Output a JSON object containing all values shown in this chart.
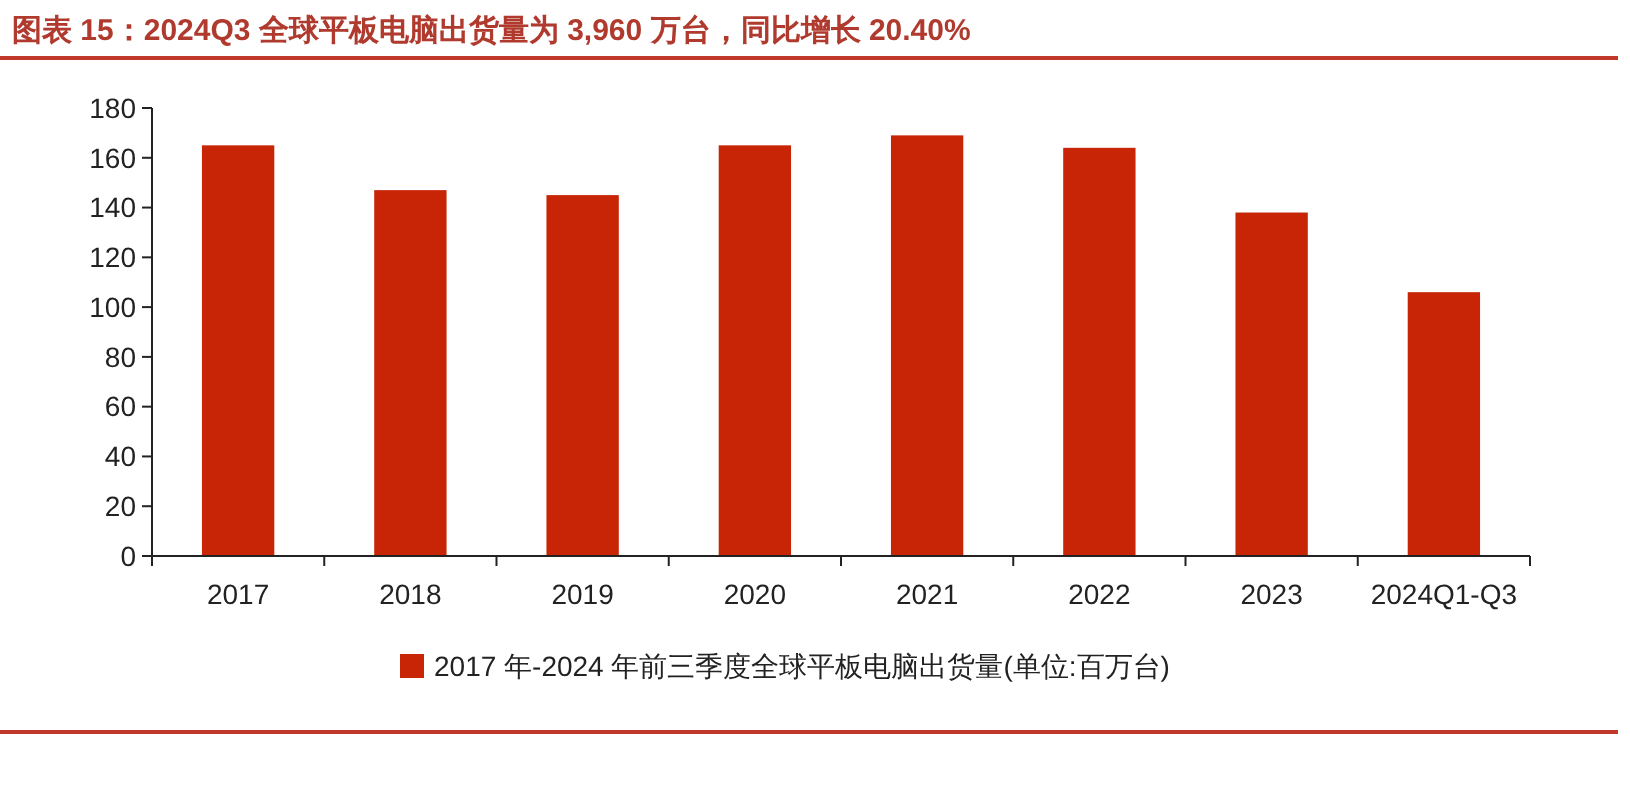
{
  "chart_data": {
    "type": "bar",
    "title": "图表 15：2024Q3 全球平板电脑出货量为 3,960 万台，同比增长 20.40%",
    "categories": [
      "2017",
      "2018",
      "2019",
      "2020",
      "2021",
      "2022",
      "2023",
      "2024Q1-Q3"
    ],
    "series": [
      {
        "name": "2017 年-2024 年前三季度全球平板电脑出货量(单位:百万台)",
        "color": "#c82506",
        "values": [
          165,
          147,
          145,
          165,
          169,
          164,
          138,
          106
        ]
      }
    ],
    "ylim": [
      0,
      180
    ],
    "yticks": [
      0,
      20,
      40,
      60,
      80,
      100,
      120,
      140,
      160,
      180
    ],
    "grid": false,
    "legend": "bottom"
  }
}
